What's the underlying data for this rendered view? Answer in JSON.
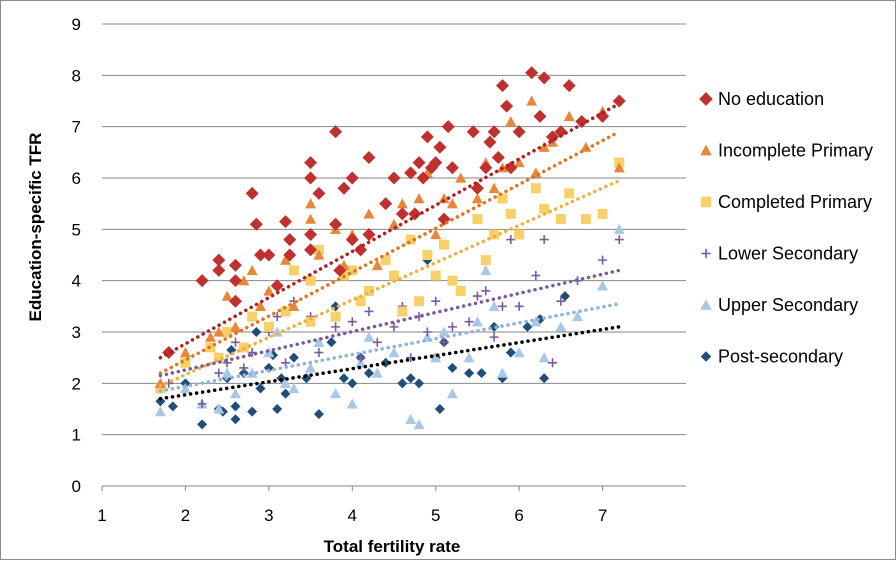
{
  "chart_data": {
    "type": "scatter",
    "xlabel": "Total fertility rate",
    "ylabel": "Education-specific TFR",
    "xlim": [
      1,
      8
    ],
    "ylim": [
      0,
      9
    ],
    "xticks": [
      1,
      2,
      3,
      4,
      5,
      6,
      7
    ],
    "yticks": [
      0,
      1,
      2,
      3,
      4,
      5,
      6,
      7,
      8,
      9
    ],
    "grid": "horizontal",
    "legend_position": "right",
    "trendlines": "linear, dotted",
    "series": [
      {
        "name": "No education",
        "marker": "diamond",
        "color": "#c0302e",
        "trend_color": "#b02020",
        "trend": [
          [
            1.7,
            2.5
          ],
          [
            7.2,
            7.45
          ]
        ],
        "points": [
          [
            1.8,
            2.6
          ],
          [
            2.2,
            4.0
          ],
          [
            2.4,
            4.4
          ],
          [
            2.4,
            4.2
          ],
          [
            2.6,
            4.3
          ],
          [
            2.6,
            3.6
          ],
          [
            2.6,
            4.0
          ],
          [
            2.8,
            5.7
          ],
          [
            2.85,
            5.1
          ],
          [
            2.9,
            4.5
          ],
          [
            3.0,
            4.5
          ],
          [
            3.1,
            3.9
          ],
          [
            3.2,
            5.15
          ],
          [
            3.25,
            4.8
          ],
          [
            3.25,
            4.5
          ],
          [
            3.5,
            4.9
          ],
          [
            3.5,
            4.6
          ],
          [
            3.5,
            6.0
          ],
          [
            3.5,
            6.3
          ],
          [
            3.6,
            5.7
          ],
          [
            3.8,
            6.9
          ],
          [
            3.8,
            5.1
          ],
          [
            3.85,
            4.2
          ],
          [
            3.9,
            5.8
          ],
          [
            4.0,
            6.0
          ],
          [
            4.0,
            4.8
          ],
          [
            4.1,
            4.6
          ],
          [
            4.2,
            6.4
          ],
          [
            4.2,
            4.9
          ],
          [
            4.4,
            5.5
          ],
          [
            4.5,
            6.0
          ],
          [
            4.6,
            5.3
          ],
          [
            4.7,
            6.1
          ],
          [
            4.75,
            5.3
          ],
          [
            4.8,
            6.3
          ],
          [
            4.85,
            6.0
          ],
          [
            4.9,
            6.8
          ],
          [
            4.95,
            6.2
          ],
          [
            5.0,
            6.3
          ],
          [
            5.05,
            6.6
          ],
          [
            5.1,
            5.2
          ],
          [
            5.15,
            7.0
          ],
          [
            5.2,
            6.2
          ],
          [
            5.45,
            6.9
          ],
          [
            5.5,
            5.8
          ],
          [
            5.6,
            6.2
          ],
          [
            5.65,
            6.7
          ],
          [
            5.7,
            6.9
          ],
          [
            5.75,
            6.4
          ],
          [
            5.8,
            7.8
          ],
          [
            5.85,
            7.4
          ],
          [
            5.9,
            6.2
          ],
          [
            6.0,
            6.9
          ],
          [
            6.15,
            8.05
          ],
          [
            6.25,
            7.2
          ],
          [
            6.3,
            7.95
          ],
          [
            6.4,
            6.8
          ],
          [
            6.5,
            6.9
          ],
          [
            6.6,
            7.8
          ],
          [
            6.75,
            7.1
          ],
          [
            7.0,
            7.2
          ],
          [
            7.2,
            7.5
          ]
        ]
      },
      {
        "name": "Incomplete Primary",
        "marker": "triangle",
        "color": "#e8873a",
        "trend_color": "#e07520",
        "trend": [
          [
            1.7,
            2.2
          ],
          [
            7.2,
            6.9
          ]
        ],
        "points": [
          [
            1.7,
            2.0
          ],
          [
            2.0,
            2.6
          ],
          [
            2.3,
            2.9
          ],
          [
            2.4,
            3.0
          ],
          [
            2.5,
            3.7
          ],
          [
            2.6,
            3.1
          ],
          [
            2.7,
            4.0
          ],
          [
            2.8,
            4.2
          ],
          [
            2.9,
            3.5
          ],
          [
            3.0,
            3.8
          ],
          [
            3.2,
            4.4
          ],
          [
            3.3,
            3.5
          ],
          [
            3.5,
            5.5
          ],
          [
            3.5,
            5.2
          ],
          [
            3.6,
            4.5
          ],
          [
            3.8,
            5.0
          ],
          [
            3.9,
            4.3
          ],
          [
            4.0,
            4.9
          ],
          [
            4.2,
            5.3
          ],
          [
            4.3,
            4.3
          ],
          [
            4.5,
            5.1
          ],
          [
            4.6,
            5.5
          ],
          [
            4.8,
            5.6
          ],
          [
            4.9,
            6.1
          ],
          [
            5.0,
            4.9
          ],
          [
            5.1,
            5.6
          ],
          [
            5.2,
            5.5
          ],
          [
            5.3,
            6.0
          ],
          [
            5.5,
            5.6
          ],
          [
            5.6,
            6.3
          ],
          [
            5.7,
            5.8
          ],
          [
            5.8,
            6.2
          ],
          [
            5.9,
            7.1
          ],
          [
            6.0,
            6.3
          ],
          [
            6.15,
            7.5
          ],
          [
            6.2,
            6.1
          ],
          [
            6.3,
            6.6
          ],
          [
            6.4,
            6.7
          ],
          [
            6.6,
            7.2
          ],
          [
            6.8,
            6.6
          ],
          [
            7.0,
            7.3
          ],
          [
            7.2,
            6.2
          ]
        ]
      },
      {
        "name": "Completed Primary",
        "marker": "square",
        "color": "#f8d06a",
        "trend_color": "#f0b040",
        "trend": [
          [
            1.7,
            1.95
          ],
          [
            7.2,
            5.95
          ]
        ],
        "points": [
          [
            1.7,
            1.9
          ],
          [
            2.0,
            2.4
          ],
          [
            2.3,
            2.7
          ],
          [
            2.4,
            2.5
          ],
          [
            2.5,
            3.0
          ],
          [
            2.7,
            2.7
          ],
          [
            2.8,
            3.3
          ],
          [
            3.0,
            3.1
          ],
          [
            3.2,
            3.4
          ],
          [
            3.3,
            4.2
          ],
          [
            3.5,
            3.2
          ],
          [
            3.5,
            4.0
          ],
          [
            3.6,
            4.6
          ],
          [
            3.8,
            3.3
          ],
          [
            3.9,
            4.1
          ],
          [
            4.0,
            4.2
          ],
          [
            4.1,
            3.6
          ],
          [
            4.2,
            3.8
          ],
          [
            4.4,
            4.4
          ],
          [
            4.5,
            4.1
          ],
          [
            4.6,
            3.4
          ],
          [
            4.7,
            4.8
          ],
          [
            4.8,
            3.6
          ],
          [
            4.9,
            4.5
          ],
          [
            5.0,
            4.1
          ],
          [
            5.1,
            4.7
          ],
          [
            5.2,
            4.0
          ],
          [
            5.3,
            3.8
          ],
          [
            5.5,
            5.2
          ],
          [
            5.6,
            4.4
          ],
          [
            5.7,
            4.9
          ],
          [
            5.8,
            5.6
          ],
          [
            5.9,
            5.3
          ],
          [
            6.0,
            4.9
          ],
          [
            6.2,
            5.8
          ],
          [
            6.3,
            5.4
          ],
          [
            6.5,
            5.2
          ],
          [
            6.6,
            5.7
          ],
          [
            6.8,
            5.2
          ],
          [
            7.0,
            5.3
          ],
          [
            7.2,
            6.3
          ]
        ]
      },
      {
        "name": "Lower Secondary",
        "marker": "plus",
        "color": "#7a5a9e",
        "trend_color": "#7a5a9e",
        "trend": [
          [
            1.7,
            2.15
          ],
          [
            7.2,
            4.2
          ]
        ],
        "points": [
          [
            1.8,
            2.0
          ],
          [
            2.2,
            1.6
          ],
          [
            2.4,
            2.2
          ],
          [
            2.5,
            2.4
          ],
          [
            2.6,
            2.8
          ],
          [
            2.7,
            2.3
          ],
          [
            2.8,
            2.6
          ],
          [
            3.0,
            3.0
          ],
          [
            3.1,
            3.3
          ],
          [
            3.2,
            2.4
          ],
          [
            3.3,
            3.6
          ],
          [
            3.5,
            3.3
          ],
          [
            3.6,
            2.6
          ],
          [
            3.8,
            3.1
          ],
          [
            4.0,
            3.2
          ],
          [
            4.1,
            2.5
          ],
          [
            4.2,
            3.4
          ],
          [
            4.3,
            2.8
          ],
          [
            4.5,
            3.1
          ],
          [
            4.6,
            3.5
          ],
          [
            4.7,
            2.5
          ],
          [
            4.8,
            3.3
          ],
          [
            4.9,
            3.0
          ],
          [
            5.0,
            3.6
          ],
          [
            5.1,
            2.8
          ],
          [
            5.2,
            3.1
          ],
          [
            5.4,
            3.2
          ],
          [
            5.5,
            3.7
          ],
          [
            5.6,
            3.8
          ],
          [
            5.7,
            2.9
          ],
          [
            5.8,
            3.5
          ],
          [
            5.9,
            4.8
          ],
          [
            6.0,
            3.5
          ],
          [
            6.2,
            4.1
          ],
          [
            6.3,
            4.8
          ],
          [
            6.4,
            2.4
          ],
          [
            6.5,
            3.6
          ],
          [
            6.7,
            4.0
          ],
          [
            7.0,
            4.4
          ],
          [
            7.2,
            4.8
          ]
        ]
      },
      {
        "name": "Upper Secondary",
        "marker": "triangle",
        "color": "#a9c8e6",
        "trend_color": "#8eb4de",
        "trend": [
          [
            1.7,
            1.85
          ],
          [
            7.2,
            3.55
          ]
        ],
        "points": [
          [
            1.7,
            1.45
          ],
          [
            2.0,
            1.9
          ],
          [
            2.2,
            1.6
          ],
          [
            2.4,
            1.5
          ],
          [
            2.5,
            2.2
          ],
          [
            2.6,
            1.8
          ],
          [
            2.8,
            2.2
          ],
          [
            3.0,
            2.6
          ],
          [
            3.1,
            3.0
          ],
          [
            3.2,
            2.0
          ],
          [
            3.3,
            1.9
          ],
          [
            3.5,
            2.3
          ],
          [
            3.6,
            2.8
          ],
          [
            3.8,
            1.8
          ],
          [
            4.0,
            1.6
          ],
          [
            4.1,
            2.4
          ],
          [
            4.2,
            2.9
          ],
          [
            4.3,
            2.2
          ],
          [
            4.5,
            2.6
          ],
          [
            4.6,
            3.4
          ],
          [
            4.7,
            1.3
          ],
          [
            4.8,
            1.2
          ],
          [
            4.9,
            2.9
          ],
          [
            5.0,
            2.5
          ],
          [
            5.1,
            3.0
          ],
          [
            5.2,
            1.8
          ],
          [
            5.4,
            2.5
          ],
          [
            5.5,
            3.2
          ],
          [
            5.6,
            4.2
          ],
          [
            5.7,
            3.5
          ],
          [
            5.8,
            2.2
          ],
          [
            6.0,
            2.6
          ],
          [
            6.2,
            3.2
          ],
          [
            6.3,
            2.5
          ],
          [
            6.5,
            3.1
          ],
          [
            6.7,
            3.3
          ],
          [
            7.0,
            3.9
          ],
          [
            7.2,
            5.0
          ]
        ]
      },
      {
        "name": "Post-secondary",
        "marker": "diamond-small",
        "color": "#1f4e79",
        "trend_color": "#000000",
        "trend": [
          [
            1.7,
            1.7
          ],
          [
            7.2,
            3.1
          ]
        ],
        "points": [
          [
            1.7,
            1.65
          ],
          [
            1.85,
            1.55
          ],
          [
            2.0,
            2.0
          ],
          [
            2.2,
            1.2
          ],
          [
            2.4,
            1.5
          ],
          [
            2.45,
            1.45
          ],
          [
            2.5,
            2.1
          ],
          [
            2.55,
            2.65
          ],
          [
            2.6,
            1.3
          ],
          [
            2.6,
            1.55
          ],
          [
            2.7,
            2.2
          ],
          [
            2.8,
            1.45
          ],
          [
            2.85,
            3.0
          ],
          [
            2.9,
            1.9
          ],
          [
            3.0,
            2.3
          ],
          [
            3.05,
            2.55
          ],
          [
            3.1,
            1.5
          ],
          [
            3.15,
            2.1
          ],
          [
            3.2,
            1.8
          ],
          [
            3.3,
            2.5
          ],
          [
            3.45,
            2.1
          ],
          [
            3.5,
            3.2
          ],
          [
            3.6,
            1.4
          ],
          [
            3.75,
            2.8
          ],
          [
            3.8,
            3.5
          ],
          [
            3.9,
            2.1
          ],
          [
            4.0,
            2.0
          ],
          [
            4.1,
            2.5
          ],
          [
            4.2,
            2.2
          ],
          [
            4.4,
            2.4
          ],
          [
            4.6,
            2.0
          ],
          [
            4.7,
            2.1
          ],
          [
            4.8,
            2.0
          ],
          [
            4.9,
            4.4
          ],
          [
            5.0,
            2.5
          ],
          [
            5.05,
            1.5
          ],
          [
            5.1,
            2.8
          ],
          [
            5.2,
            2.3
          ],
          [
            5.4,
            2.2
          ],
          [
            5.55,
            2.2
          ],
          [
            5.7,
            3.1
          ],
          [
            5.8,
            2.1
          ],
          [
            5.9,
            2.6
          ],
          [
            6.1,
            3.1
          ],
          [
            6.25,
            3.25
          ],
          [
            6.3,
            2.1
          ],
          [
            6.55,
            3.7
          ]
        ]
      }
    ]
  }
}
